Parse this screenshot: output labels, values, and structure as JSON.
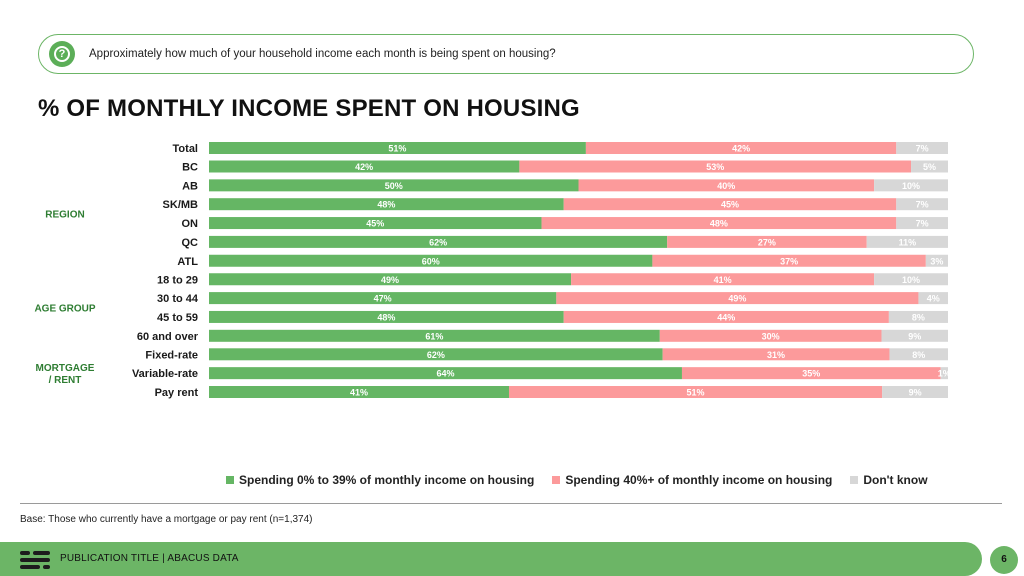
{
  "question": {
    "icon": "question-bubble-icon",
    "text": "Approximately how much of your household income each month is being spent on housing?"
  },
  "title": "% OF MONTHLY INCOME SPENT ON HOUSING",
  "colors": {
    "low": "#65b664",
    "high": "#fc9a9b",
    "dk": "#d7d7d7",
    "group_label": "#2e7d32"
  },
  "chart_data": {
    "type": "bar",
    "orientation": "horizontal",
    "stacked": true,
    "value_format": "percent",
    "series": [
      {
        "name": "Spending 0% to 39% of monthly income on housing",
        "color": "#65b664"
      },
      {
        "name": "Spending 40%+ of monthly income on housing",
        "color": "#fc9a9b"
      },
      {
        "name": "Don't know",
        "color": "#d7d7d7"
      }
    ],
    "groups": [
      {
        "label": "",
        "rows": [
          {
            "category": "Total",
            "values": [
              51,
              42,
              7
            ]
          }
        ]
      },
      {
        "label": "REGION",
        "rows": [
          {
            "category": "BC",
            "values": [
              42,
              53,
              5
            ]
          },
          {
            "category": "AB",
            "values": [
              50,
              40,
              10
            ]
          },
          {
            "category": "SK/MB",
            "values": [
              48,
              45,
              7
            ]
          },
          {
            "category": "ON",
            "values": [
              45,
              48,
              7
            ]
          },
          {
            "category": "QC",
            "values": [
              62,
              27,
              11
            ]
          },
          {
            "category": "ATL",
            "values": [
              60,
              37,
              3
            ]
          }
        ]
      },
      {
        "label": "AGE GROUP",
        "rows": [
          {
            "category": "18 to 29",
            "values": [
              49,
              41,
              10
            ]
          },
          {
            "category": "30 to 44",
            "values": [
              47,
              49,
              4
            ]
          },
          {
            "category": "45 to 59",
            "values": [
              48,
              44,
              8
            ]
          },
          {
            "category": "60 and over",
            "values": [
              61,
              30,
              9
            ]
          }
        ]
      },
      {
        "label": "MORTGAGE\n/ RENT",
        "rows": [
          {
            "category": "Fixed-rate",
            "values": [
              62,
              31,
              8
            ]
          },
          {
            "category": "Variable-rate",
            "values": [
              64,
              35,
              1
            ]
          },
          {
            "category": "Pay rent",
            "values": [
              41,
              51,
              9
            ]
          }
        ]
      }
    ],
    "legend_position": "bottom"
  },
  "legend": [
    {
      "label": "Spending 0% to 39% of monthly income on housing",
      "color": "#65b664"
    },
    {
      "label": "Spending 40%+ of monthly income on housing",
      "color": "#fc9a9b"
    },
    {
      "label": "Don't know",
      "color": "#d7d7d7"
    }
  ],
  "base_note": "Base: Those who currently have a mortgage or pay rent (n=1,374)",
  "footer": {
    "logo_icon": "abacus-logo-icon",
    "text": "PUBLICATION TITLE  |  ABACUS DATA",
    "page_number": "6"
  }
}
